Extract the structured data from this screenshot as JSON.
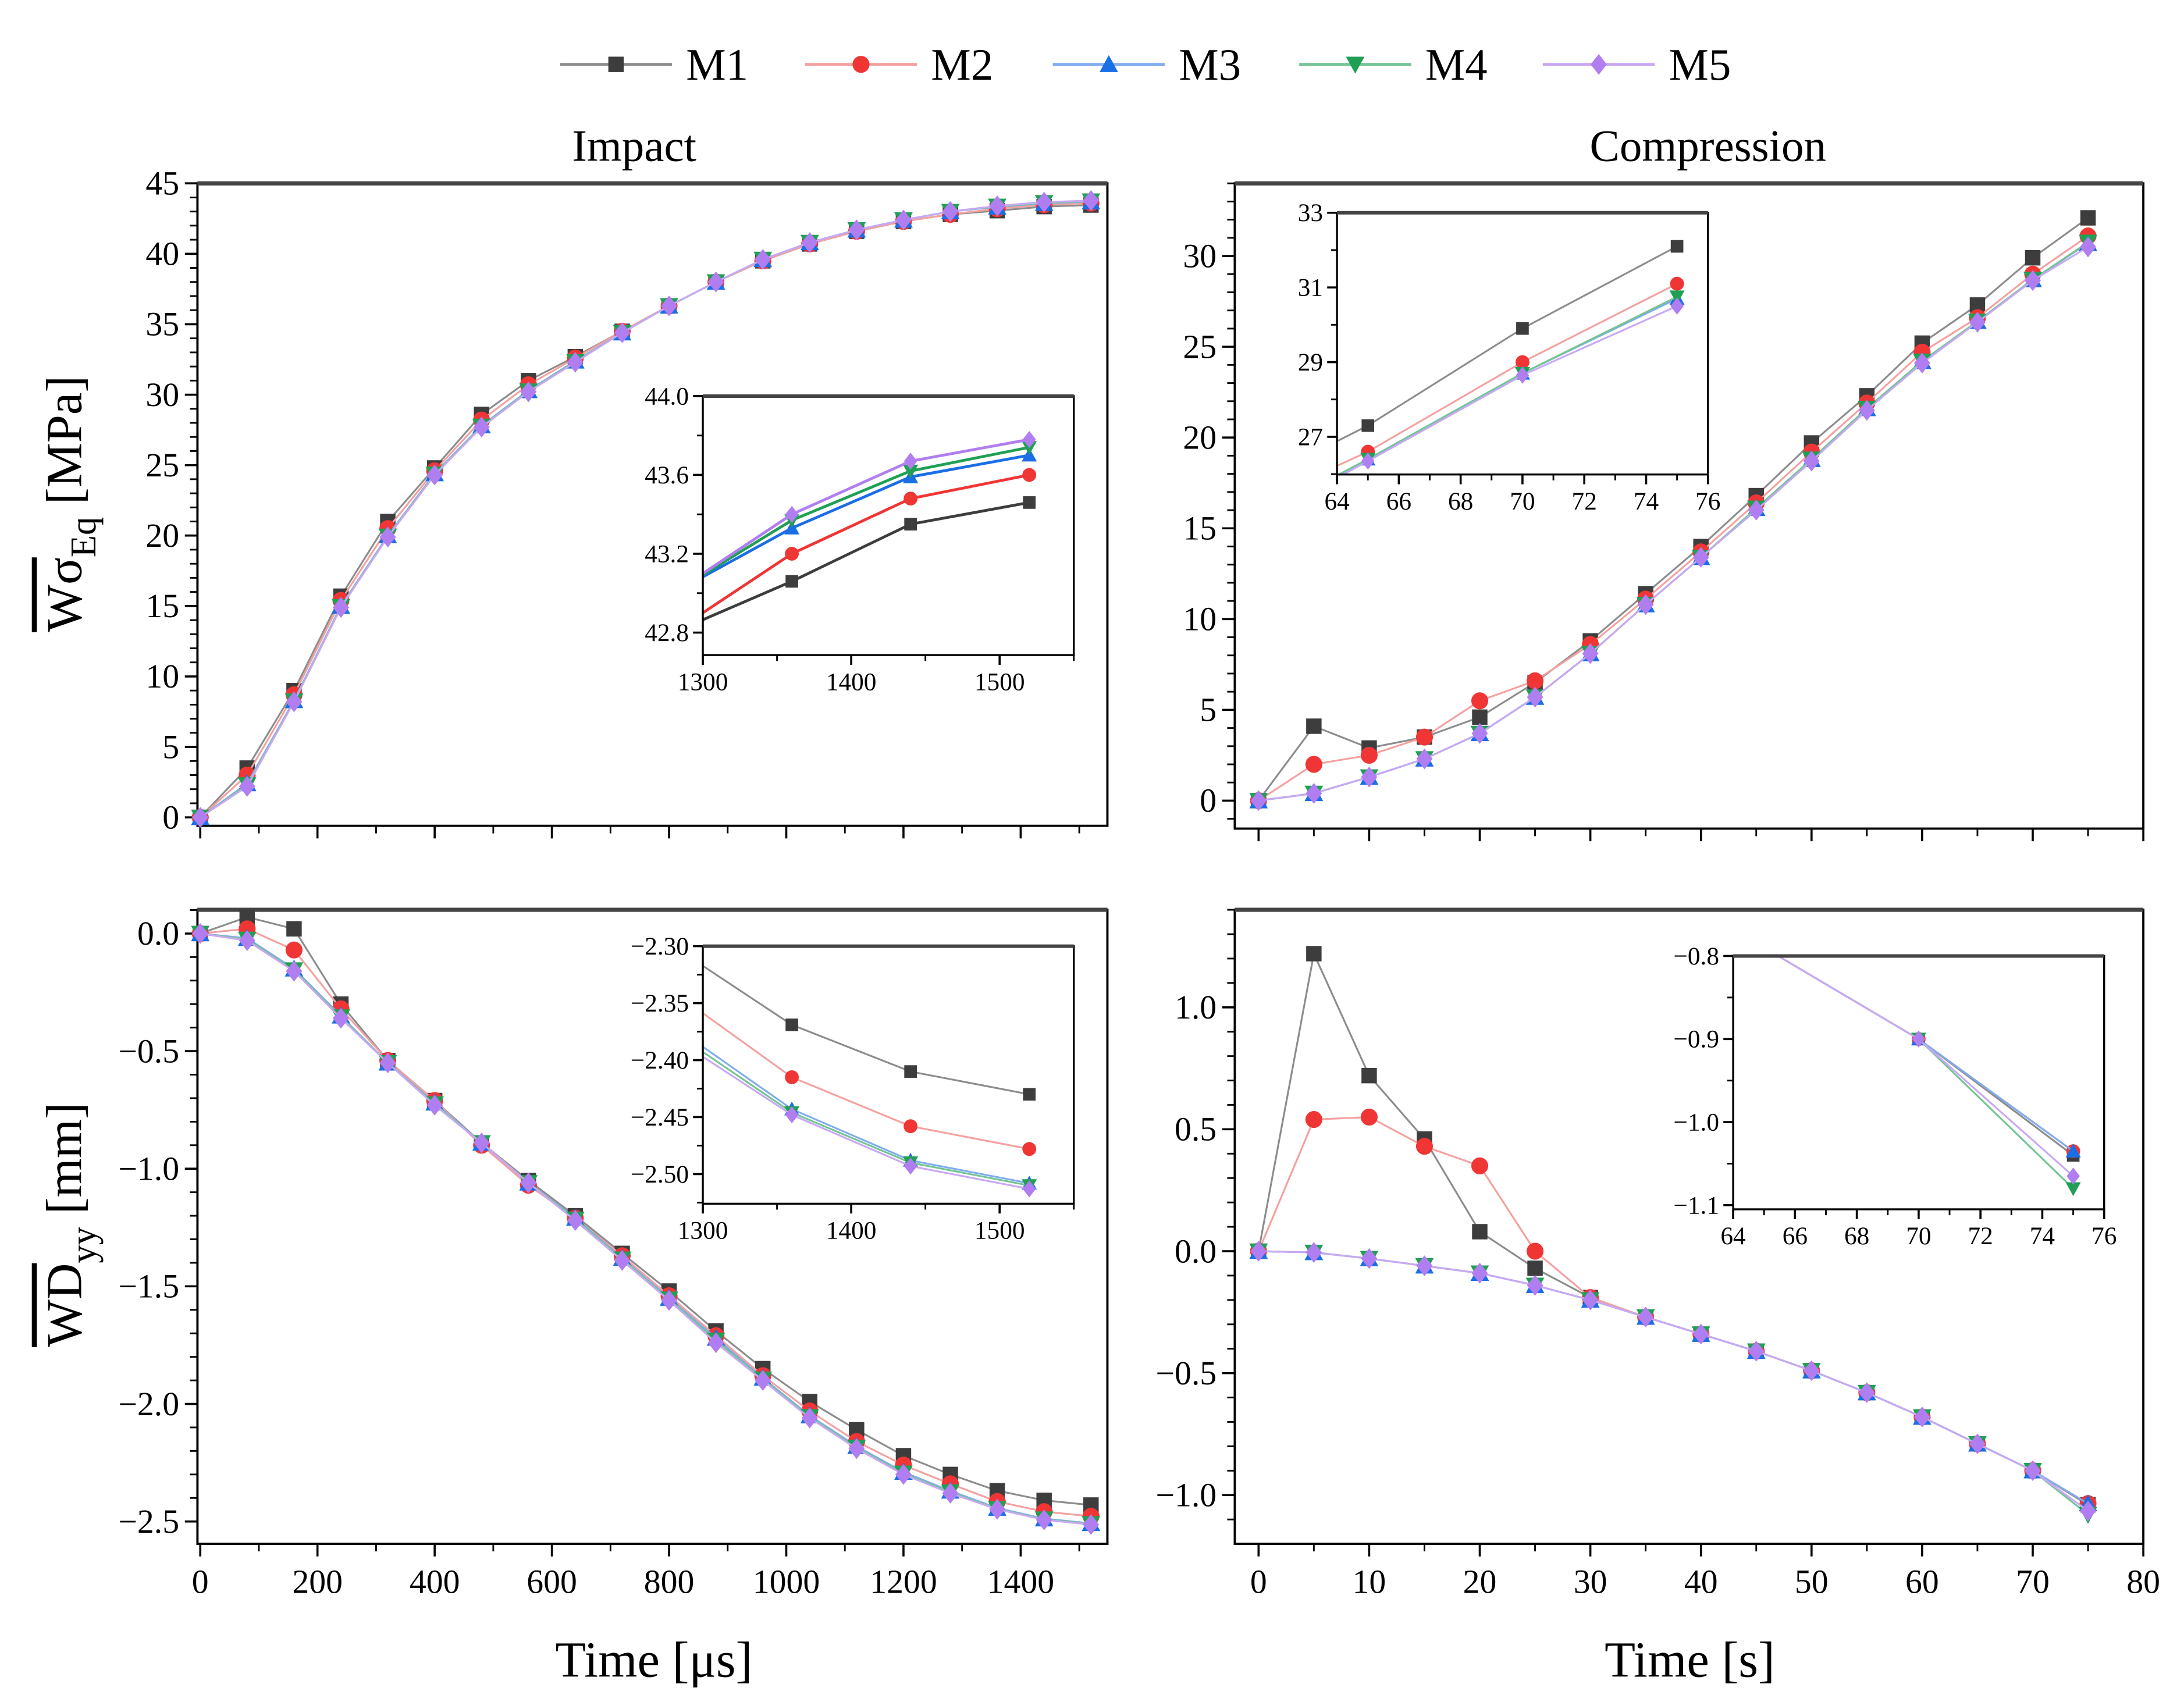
{
  "legend": [
    {
      "name": "M1",
      "marker": "square",
      "line": "#8c8c8c",
      "color": "#3d3d3d"
    },
    {
      "name": "M2",
      "marker": "circle",
      "line": "#f4a0a0",
      "color": "#f03535"
    },
    {
      "name": "M3",
      "marker": "triangle-up",
      "line": "#80acee",
      "color": "#1a6ee6"
    },
    {
      "name": "M4",
      "marker": "triangle-down",
      "line": "#74c496",
      "color": "#20a055"
    },
    {
      "name": "M5",
      "marker": "diamond",
      "line": "#c8a8f4",
      "color": "#b07ef0"
    }
  ],
  "chart_data": [
    {
      "type": "line",
      "title": "Impact",
      "xlabel": "",
      "ylabel": "Wσ_Eq [MPa]",
      "ylabel_main": "Wσ",
      "ylabel_sub": "Eq",
      "ylabel_unit": " [MPa]",
      "xlim": [
        -4.8,
        1548
      ],
      "ylim": [
        -0.6,
        45
      ],
      "xticks": [
        0,
        200,
        400,
        600,
        800,
        1000,
        1200,
        1400
      ],
      "xtick_labels": [],
      "yticks": [
        0,
        5,
        10,
        15,
        20,
        25,
        30,
        35,
        40,
        45
      ],
      "ytick_labels": [
        "0",
        "5",
        "10",
        "15",
        "20",
        "25",
        "30",
        "35",
        "40",
        "45"
      ],
      "x": [
        0,
        80,
        160,
        240,
        320,
        400,
        480,
        560,
        640,
        720,
        800,
        880,
        960,
        1040,
        1120,
        1200,
        1280,
        1360,
        1440,
        1520
      ],
      "series": [
        {
          "name": "M1",
          "values": [
            0,
            3.5,
            9.0,
            15.7,
            21.0,
            24.8,
            28.6,
            31.0,
            32.7,
            34.5,
            36.3,
            38.0,
            39.5,
            40.7,
            41.6,
            42.3,
            42.8,
            43.06,
            43.35,
            43.46
          ]
        },
        {
          "name": "M2",
          "values": [
            0,
            3.0,
            8.7,
            15.4,
            20.5,
            24.6,
            28.2,
            30.7,
            32.6,
            34.5,
            36.3,
            38.0,
            39.5,
            40.7,
            41.6,
            42.3,
            42.8,
            43.2,
            43.48,
            43.6
          ]
        },
        {
          "name": "M3",
          "values": [
            0,
            2.4,
            8.3,
            15.0,
            20.0,
            24.4,
            27.8,
            30.3,
            32.4,
            34.4,
            36.3,
            38.0,
            39.6,
            40.8,
            41.7,
            42.4,
            43.0,
            43.33,
            43.59,
            43.7
          ]
        },
        {
          "name": "M4",
          "values": [
            0,
            2.3,
            8.25,
            14.95,
            19.95,
            24.35,
            27.75,
            30.25,
            32.35,
            34.4,
            36.3,
            38.0,
            39.6,
            40.8,
            41.7,
            42.4,
            43.0,
            43.37,
            43.62,
            43.74
          ]
        },
        {
          "name": "M5",
          "values": [
            0,
            2.2,
            8.2,
            14.9,
            19.9,
            24.3,
            27.7,
            30.2,
            32.3,
            34.4,
            36.3,
            38.0,
            39.6,
            40.8,
            41.7,
            42.4,
            43.0,
            43.4,
            43.67,
            43.78
          ]
        }
      ],
      "inset": {
        "xlim": [
          1300,
          1550
        ],
        "ylim": [
          42.686,
          44.0
        ],
        "xticks": [
          1300,
          1400,
          1500
        ],
        "xtick_labels": [
          "1300",
          "1400",
          "1500"
        ],
        "yticks": [
          42.8,
          43.2,
          43.6,
          44.0
        ],
        "ytick_labels": [
          "42.8",
          "43.2",
          "43.6",
          "44.0"
        ]
      }
    },
    {
      "type": "line",
      "title": "Compression",
      "xlabel": "",
      "ylabel": "",
      "xlim": [
        -2.15,
        80
      ],
      "ylim": [
        -1.54,
        34
      ],
      "xticks": [
        0,
        10,
        20,
        30,
        40,
        50,
        60,
        70,
        80
      ],
      "xtick_labels": [],
      "yticks": [
        0,
        5,
        10,
        15,
        20,
        25,
        30
      ],
      "ytick_labels": [
        "0",
        "5",
        "10",
        "15",
        "20",
        "25",
        "30"
      ],
      "x": [
        0,
        5,
        10,
        15,
        20,
        25,
        30,
        35,
        40,
        45,
        50,
        55,
        60,
        65,
        70,
        75
      ],
      "series": [
        {
          "name": "M1",
          "values": [
            0,
            4.1,
            2.9,
            3.5,
            4.6,
            6.5,
            8.8,
            11.4,
            14.0,
            16.8,
            19.7,
            22.3,
            25.2,
            27.3,
            29.9,
            32.1
          ]
        },
        {
          "name": "M2",
          "values": [
            0,
            2.0,
            2.5,
            3.5,
            5.5,
            6.6,
            8.6,
            11.1,
            13.7,
            16.4,
            19.2,
            21.9,
            24.7,
            26.6,
            29.0,
            31.1
          ]
        },
        {
          "name": "M3",
          "values": [
            0,
            0.4,
            1.3,
            2.3,
            3.7,
            5.7,
            8.1,
            10.8,
            13.4,
            16.1,
            18.8,
            21.6,
            24.2,
            26.4,
            28.7,
            30.7
          ]
        },
        {
          "name": "M4",
          "values": [
            0,
            0.4,
            1.3,
            2.3,
            3.7,
            5.7,
            8.1,
            10.8,
            13.4,
            16.1,
            18.8,
            21.6,
            24.2,
            26.4,
            28.7,
            30.75
          ]
        },
        {
          "name": "M5",
          "values": [
            0,
            0.4,
            1.3,
            2.3,
            3.7,
            5.7,
            8.1,
            10.8,
            13.4,
            16.0,
            18.7,
            21.5,
            24.1,
            26.35,
            28.65,
            30.5
          ]
        }
      ],
      "inset": {
        "xlim": [
          64,
          76
        ],
        "ylim": [
          25.99,
          33
        ],
        "xticks": [
          64,
          66,
          68,
          70,
          72,
          74,
          76
        ],
        "xtick_labels": [
          "64",
          "66",
          "68",
          "70",
          "72",
          "74",
          "76"
        ],
        "yticks": [
          27,
          29,
          31,
          33
        ],
        "ytick_labels": [
          "27",
          "29",
          "31",
          "33"
        ]
      }
    },
    {
      "type": "line",
      "title": "",
      "xlabel": "Time [μs]",
      "ylabel": "WD_yy [mm]",
      "ylabel_main": "WD",
      "ylabel_sub": "yy",
      "ylabel_unit": " [mm]",
      "xlim": [
        -4.8,
        1548
      ],
      "ylim": [
        -2.595,
        0.101
      ],
      "xticks": [
        0,
        200,
        400,
        600,
        800,
        1000,
        1200,
        1400
      ],
      "xtick_labels": [
        "0",
        "200",
        "400",
        "600",
        "800",
        "1000",
        "1200",
        "1400"
      ],
      "yticks": [
        0,
        -0.5,
        -1.0,
        -1.5,
        -2.0,
        -2.5
      ],
      "ytick_labels": [
        "0.0",
        "−0.5",
        "−1.0",
        "−1.5",
        "−2.0",
        "−2.5"
      ],
      "x": [
        0,
        80,
        160,
        240,
        320,
        400,
        480,
        560,
        640,
        720,
        800,
        880,
        960,
        1040,
        1120,
        1200,
        1280,
        1360,
        1440,
        1520
      ],
      "series": [
        {
          "name": "M1",
          "values": [
            0,
            0.07,
            0.02,
            -0.3,
            -0.54,
            -0.71,
            -0.89,
            -1.05,
            -1.2,
            -1.36,
            -1.52,
            -1.69,
            -1.85,
            -1.99,
            -2.11,
            -2.22,
            -2.3,
            -2.369,
            -2.41,
            -2.43
          ]
        },
        {
          "name": "M2",
          "values": [
            0,
            0.02,
            -0.07,
            -0.32,
            -0.54,
            -0.71,
            -0.9,
            -1.07,
            -1.21,
            -1.37,
            -1.54,
            -1.71,
            -1.88,
            -2.03,
            -2.16,
            -2.26,
            -2.34,
            -2.415,
            -2.458,
            -2.478
          ]
        },
        {
          "name": "M3",
          "values": [
            0,
            -0.02,
            -0.15,
            -0.35,
            -0.55,
            -0.72,
            -0.89,
            -1.06,
            -1.21,
            -1.38,
            -1.55,
            -1.72,
            -1.89,
            -2.05,
            -2.18,
            -2.29,
            -2.37,
            -2.443,
            -2.488,
            -2.508
          ]
        },
        {
          "name": "M4",
          "values": [
            0,
            -0.025,
            -0.155,
            -0.355,
            -0.55,
            -0.725,
            -0.89,
            -1.06,
            -1.215,
            -1.385,
            -1.555,
            -1.73,
            -1.895,
            -2.055,
            -2.185,
            -2.295,
            -2.375,
            -2.446,
            -2.49,
            -2.51
          ]
        },
        {
          "name": "M5",
          "values": [
            0,
            -0.03,
            -0.16,
            -0.36,
            -0.55,
            -0.73,
            -0.89,
            -1.06,
            -1.22,
            -1.39,
            -1.56,
            -1.74,
            -1.9,
            -2.06,
            -2.19,
            -2.3,
            -2.38,
            -2.448,
            -2.493,
            -2.513
          ]
        }
      ],
      "inset": {
        "xlim": [
          1300,
          1550
        ],
        "ylim": [
          -2.526,
          -2.3
        ],
        "xticks": [
          1300,
          1400,
          1500
        ],
        "xtick_labels": [
          "1300",
          "1400",
          "1500"
        ],
        "yticks": [
          -2.3,
          -2.35,
          -2.4,
          -2.45,
          -2.5
        ],
        "ytick_labels": [
          "−2.30",
          "−2.35",
          "−2.40",
          "−2.45",
          "−2.50"
        ]
      }
    },
    {
      "type": "line",
      "title": "",
      "xlabel": "Time [s]",
      "ylabel": "",
      "xlim": [
        -2.15,
        80
      ],
      "ylim": [
        -1.2,
        1.4
      ],
      "xticks": [
        0,
        10,
        20,
        30,
        40,
        50,
        60,
        70,
        80
      ],
      "xtick_labels": [
        "0",
        "10",
        "20",
        "30",
        "40",
        "50",
        "60",
        "70",
        "80"
      ],
      "yticks": [
        1.0,
        0.5,
        0.0,
        -0.5,
        -1.0
      ],
      "ytick_labels": [
        "1.0",
        "0.5",
        "0.0",
        "−0.5",
        "−1.0"
      ],
      "x": [
        0,
        5,
        10,
        15,
        20,
        25,
        30,
        35,
        40,
        45,
        50,
        55,
        60,
        65,
        70,
        75
      ],
      "series": [
        {
          "name": "M1",
          "values": [
            0,
            1.22,
            0.72,
            0.46,
            0.08,
            -0.07,
            -0.19,
            -0.27,
            -0.34,
            -0.41,
            -0.49,
            -0.58,
            -0.68,
            -0.79,
            -0.9,
            -1.04
          ]
        },
        {
          "name": "M2",
          "values": [
            0,
            0.54,
            0.55,
            0.43,
            0.35,
            0.0,
            -0.19,
            -0.27,
            -0.34,
            -0.41,
            -0.49,
            -0.58,
            -0.68,
            -0.79,
            -0.9,
            -1.035
          ]
        },
        {
          "name": "M3",
          "values": [
            0,
            -0.005,
            -0.03,
            -0.06,
            -0.09,
            -0.14,
            -0.2,
            -0.27,
            -0.34,
            -0.41,
            -0.49,
            -0.58,
            -0.68,
            -0.79,
            -0.9,
            -1.035
          ]
        },
        {
          "name": "M4",
          "values": [
            0,
            -0.005,
            -0.03,
            -0.06,
            -0.09,
            -0.14,
            -0.2,
            -0.27,
            -0.34,
            -0.41,
            -0.49,
            -0.58,
            -0.68,
            -0.79,
            -0.9,
            -1.08
          ]
        },
        {
          "name": "M5",
          "values": [
            0,
            -0.005,
            -0.03,
            -0.06,
            -0.09,
            -0.14,
            -0.2,
            -0.27,
            -0.34,
            -0.41,
            -0.49,
            -0.58,
            -0.68,
            -0.79,
            -0.9,
            -1.065
          ]
        }
      ],
      "inset": {
        "xlim": [
          64,
          76
        ],
        "ylim": [
          -1.105,
          -0.8
        ],
        "xticks": [
          64,
          66,
          68,
          70,
          72,
          74,
          76
        ],
        "xtick_labels": [
          "64",
          "66",
          "68",
          "70",
          "72",
          "74",
          "76"
        ],
        "yticks": [
          -0.8,
          -0.9,
          -1.0,
          -1.1
        ],
        "ytick_labels": [
          "−0.8",
          "−0.9",
          "−1.0",
          "−1.1"
        ]
      }
    }
  ]
}
